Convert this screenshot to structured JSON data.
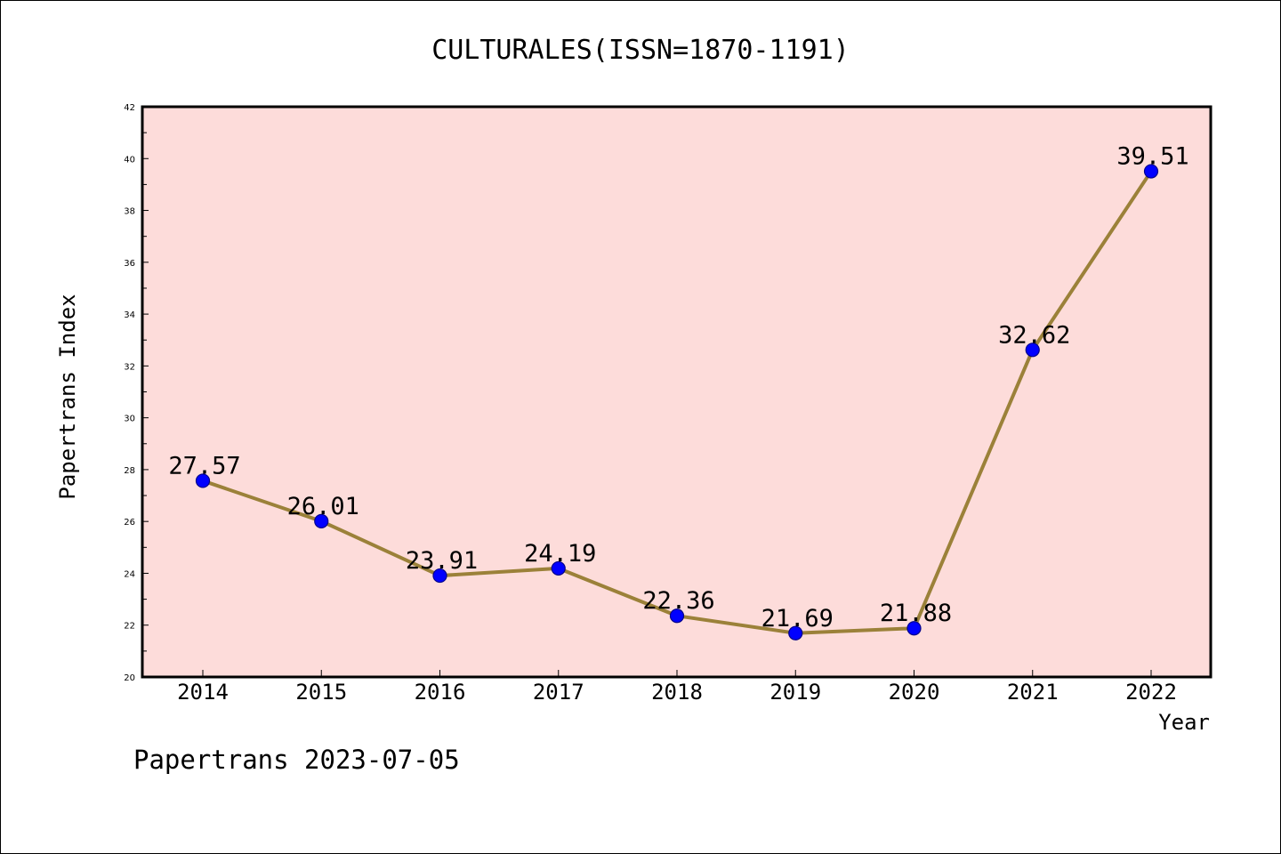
{
  "chart_data": {
    "type": "line",
    "title": "CULTURALES(ISSN=1870-1191)",
    "xlabel": "Year",
    "ylabel": "Papertrans Index",
    "categories": [
      "2014",
      "2015",
      "2016",
      "2017",
      "2018",
      "2019",
      "2020",
      "2021",
      "2022"
    ],
    "series": [
      {
        "values": [
          27.57,
          26.01,
          23.91,
          24.19,
          22.36,
          21.69,
          21.88,
          32.62,
          39.51
        ],
        "labels": [
          "27.57",
          "26.01",
          "23.91",
          "24.19",
          "22.36",
          "21.69",
          "21.88",
          "32.62",
          "39.51"
        ]
      }
    ],
    "ylim": [
      20,
      42
    ],
    "yticks": [
      "20",
      "22",
      "24",
      "26",
      "28",
      "30",
      "32",
      "34",
      "36",
      "38",
      "40",
      "42"
    ],
    "grid": false,
    "colors": {
      "plot_background": "#fddcda",
      "line": "#9b8139",
      "marker": "#0000ff",
      "marker_edge": "#00008b",
      "axes": "#000000"
    }
  },
  "footer": {
    "text": "Papertrans 2023-07-05"
  }
}
